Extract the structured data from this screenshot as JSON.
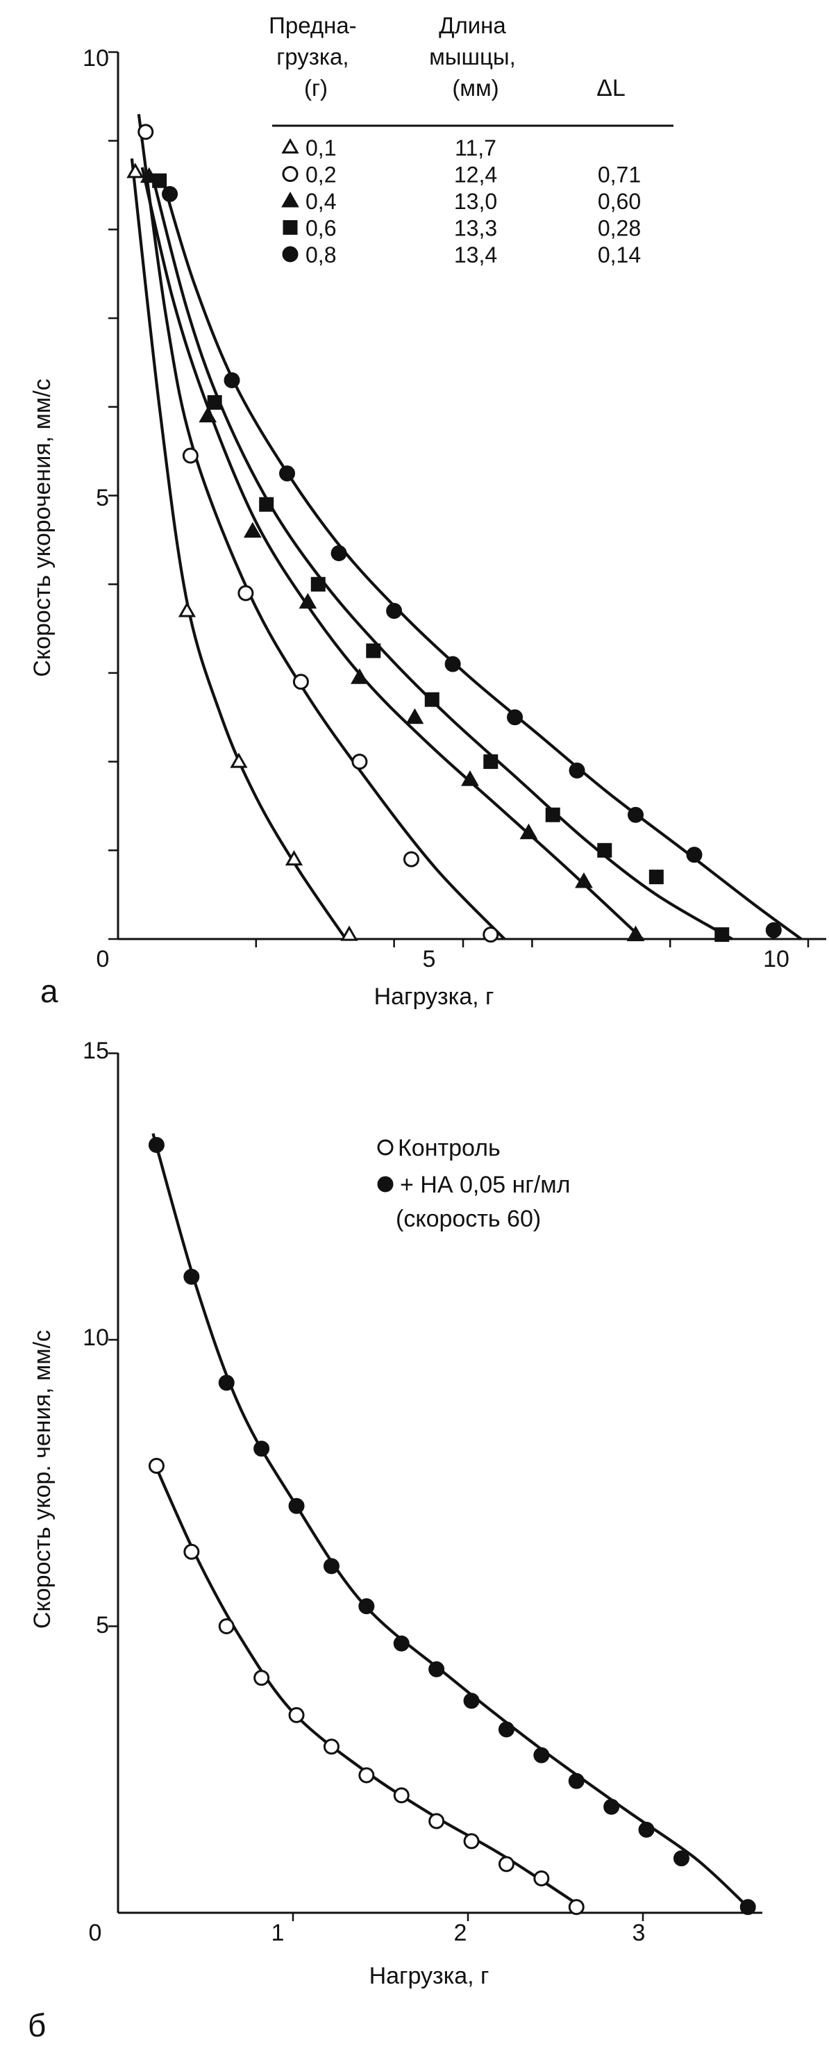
{
  "panels": [
    {
      "letter": "а",
      "chart_data": {
        "type": "scatter",
        "xlabel": "Нагрузка, г",
        "ylabel": "Скорость укорочения, мм/с",
        "xlim": [
          0,
          10.6
        ],
        "ylim": [
          0,
          10
        ],
        "x_ticks": [
          0,
          5,
          10
        ],
        "y_ticks": [
          5,
          10
        ],
        "grid": false,
        "legend_table": {
          "headers": [
            "Предна-\nгрузка,\n(г)",
            "Длина\nмышцы,\n(мм)",
            "ΔL"
          ],
          "rows": [
            [
              "0,1",
              "11,7",
              ""
            ],
            [
              "0,2",
              "12,4",
              "0,71"
            ],
            [
              "0,4",
              "13,0",
              "0,60"
            ],
            [
              "0,6",
              "13,3",
              "0,28"
            ],
            [
              "0,8",
              "13,4",
              "0,14"
            ]
          ]
        },
        "series": [
          {
            "marker": "triangle-open",
            "preload": "0,1",
            "x": [
              0.25,
              1.0,
              1.75,
              2.55,
              3.35
            ],
            "y": [
              8.65,
              3.7,
              2.0,
              0.9,
              0.05
            ],
            "curve": [
              [
                0.2,
                8.8
              ],
              [
                0.6,
                6.0
              ],
              [
                1.0,
                3.8
              ],
              [
                1.5,
                2.5
              ],
              [
                2.0,
                1.6
              ],
              [
                2.6,
                0.8
              ],
              [
                3.3,
                0.0
              ]
            ]
          },
          {
            "marker": "circle-open",
            "preload": "0,2",
            "x": [
              0.4,
              1.05,
              1.85,
              2.65,
              3.5,
              4.25,
              5.4
            ],
            "y": [
              9.1,
              5.45,
              3.9,
              2.9,
              2.0,
              0.9,
              0.05
            ],
            "curve": [
              [
                0.3,
                9.3
              ],
              [
                0.7,
                7.0
              ],
              [
                1.1,
                5.5
              ],
              [
                1.9,
                3.9
              ],
              [
                2.7,
                2.8
              ],
              [
                3.6,
                1.8
              ],
              [
                4.6,
                0.8
              ],
              [
                5.6,
                0.0
              ]
            ]
          },
          {
            "marker": "triangle-filled",
            "preload": "0,4",
            "x": [
              0.45,
              1.3,
              1.95,
              2.75,
              3.5,
              4.3,
              5.1,
              5.95,
              6.75,
              7.5
            ],
            "y": [
              8.6,
              5.9,
              4.6,
              3.8,
              2.95,
              2.5,
              1.8,
              1.2,
              0.65,
              0.05
            ],
            "curve": [
              [
                0.35,
                8.7
              ],
              [
                0.8,
                7.2
              ],
              [
                1.3,
                6.0
              ],
              [
                2.0,
                4.7
              ],
              [
                2.8,
                3.7
              ],
              [
                3.6,
                2.9
              ],
              [
                4.5,
                2.2
              ],
              [
                5.5,
                1.5
              ],
              [
                6.5,
                0.8
              ],
              [
                7.6,
                0.0
              ]
            ]
          },
          {
            "marker": "square-filled",
            "preload": "0,6",
            "x": [
              0.6,
              1.4,
              2.15,
              2.9,
              3.7,
              4.55,
              5.4,
              6.3,
              7.05,
              7.8,
              8.75
            ],
            "y": [
              8.55,
              6.05,
              4.9,
              4.0,
              3.25,
              2.7,
              2.0,
              1.4,
              1.0,
              0.7,
              0.05
            ],
            "curve": [
              [
                0.5,
                8.6
              ],
              [
                1.0,
                7.1
              ],
              [
                1.5,
                6.0
              ],
              [
                2.2,
                4.9
              ],
              [
                3.0,
                4.0
              ],
              [
                3.9,
                3.2
              ],
              [
                4.8,
                2.5
              ],
              [
                5.8,
                1.8
              ],
              [
                6.8,
                1.1
              ],
              [
                7.8,
                0.5
              ],
              [
                8.9,
                0.0
              ]
            ]
          },
          {
            "marker": "circle-filled",
            "preload": "0,8",
            "x": [
              0.75,
              1.65,
              2.45,
              3.2,
              4.0,
              4.85,
              5.75,
              6.65,
              7.5,
              8.35,
              9.5
            ],
            "y": [
              8.4,
              6.3,
              5.25,
              4.35,
              3.7,
              3.1,
              2.5,
              1.9,
              1.4,
              0.95,
              0.1
            ],
            "curve": [
              [
                0.65,
                8.55
              ],
              [
                1.1,
                7.4
              ],
              [
                1.7,
                6.25
              ],
              [
                2.5,
                5.2
              ],
              [
                3.3,
                4.35
              ],
              [
                4.2,
                3.6
              ],
              [
                5.1,
                2.95
              ],
              [
                6.1,
                2.3
              ],
              [
                7.1,
                1.65
              ],
              [
                8.2,
                1.0
              ],
              [
                9.2,
                0.4
              ],
              [
                9.9,
                0.0
              ]
            ]
          }
        ]
      }
    },
    {
      "letter": "б",
      "chart_data": {
        "type": "scatter",
        "xlabel": "Нагрузка, г",
        "ylabel": "Скорость укор. чения, мм/с",
        "xlim": [
          0,
          3.8
        ],
        "ylim": [
          0,
          15
        ],
        "x_ticks": [
          0,
          1,
          2,
          3
        ],
        "y_ticks": [
          5,
          10,
          15
        ],
        "grid": false,
        "legend": [
          "Контроль",
          "+ НА 0,05 нг/мл",
          "(скорость 60)"
        ],
        "series": [
          {
            "marker": "circle-open",
            "name": "Контроль",
            "x": [
              0.22,
              0.42,
              0.62,
              0.82,
              1.02,
              1.22,
              1.42,
              1.62,
              1.82,
              2.02,
              2.22,
              2.42,
              2.62
            ],
            "y": [
              7.8,
              6.3,
              5.0,
              4.1,
              3.45,
              2.9,
              2.4,
              2.05,
              1.6,
              1.25,
              0.85,
              0.6,
              0.1
            ],
            "curve": [
              [
                0.2,
                7.9
              ],
              [
                0.45,
                6.2
              ],
              [
                0.7,
                4.8
              ],
              [
                1.0,
                3.5
              ],
              [
                1.4,
                2.5
              ],
              [
                1.8,
                1.7
              ],
              [
                2.2,
                1.0
              ],
              [
                2.65,
                0.1
              ]
            ]
          },
          {
            "marker": "circle-filled",
            "name": "+ НА 0,05 нг/мл",
            "x": [
              0.22,
              0.42,
              0.62,
              0.82,
              1.02,
              1.22,
              1.42,
              1.62,
              1.82,
              2.02,
              2.22,
              2.42,
              2.62,
              2.82,
              3.02,
              3.22,
              3.6
            ],
            "y": [
              13.4,
              11.1,
              9.25,
              8.1,
              7.1,
              6.05,
              5.35,
              4.7,
              4.25,
              3.7,
              3.2,
              2.75,
              2.3,
              1.85,
              1.45,
              0.95,
              0.1
            ],
            "curve": [
              [
                0.2,
                13.6
              ],
              [
                0.45,
                10.9
              ],
              [
                0.7,
                8.8
              ],
              [
                1.0,
                7.2
              ],
              [
                1.4,
                5.4
              ],
              [
                1.9,
                4.1
              ],
              [
                2.4,
                2.9
              ],
              [
                2.9,
                1.8
              ],
              [
                3.3,
                0.95
              ],
              [
                3.6,
                0.1
              ]
            ]
          }
        ]
      }
    }
  ]
}
